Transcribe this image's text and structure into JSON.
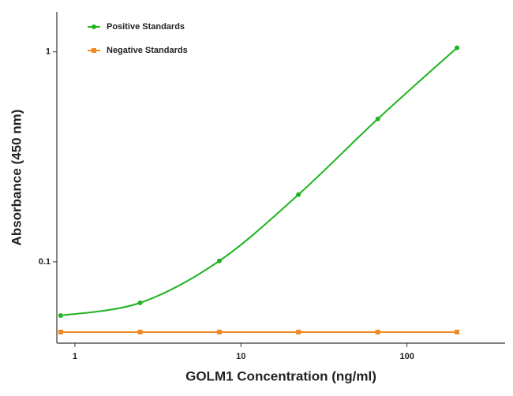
{
  "chart_data": {
    "type": "line",
    "x_label": "GOLM1 Concentration (ng/ml)",
    "y_label": "Absorbance (450 nm)",
    "xscale": "log",
    "yscale": "log",
    "x": [
      0.82,
      2.47,
      7.41,
      22.2,
      66.7,
      200
    ],
    "series": [
      {
        "name": "Positive Standards",
        "color": "#1fb31f",
        "marker": "circle",
        "values": [
          0.0555,
          0.0638,
          0.101,
          0.209,
          0.479,
          1.045
        ]
      },
      {
        "name": "Negative Standards",
        "color": "#f08a24",
        "marker": "square",
        "values": [
          0.0463,
          0.0463,
          0.0463,
          0.0463,
          0.0463,
          0.0463
        ]
      }
    ],
    "xlim": [
      0.778,
      390
    ],
    "xticks": [
      1,
      10,
      100
    ],
    "ylim": [
      0.041,
      1.55
    ],
    "yticks": [
      0.1,
      1
    ],
    "legend": "upper-left"
  }
}
